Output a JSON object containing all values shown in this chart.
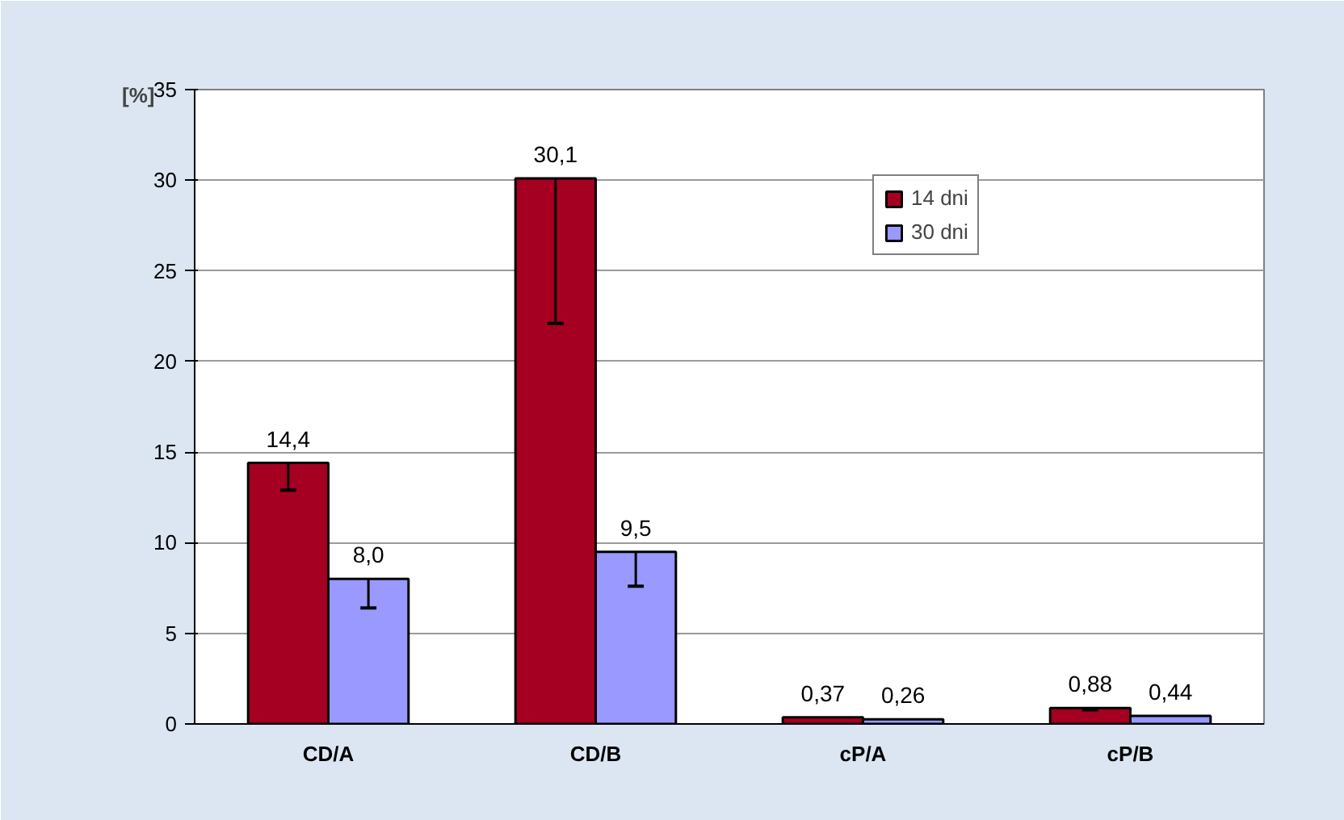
{
  "chart_data": {
    "type": "bar",
    "ylabel": "[%]",
    "categories": [
      "CD/A",
      "CD/B",
      "cP/A",
      "cP/B"
    ],
    "series": [
      {
        "name": "14 dni",
        "color": "#a50021",
        "values": [
          14.4,
          30.1,
          0.37,
          0.88
        ],
        "value_labels": [
          "14,4",
          "30,1",
          "0,37",
          "0,88"
        ],
        "errors": [
          [
            12.9,
            14.4
          ],
          [
            22.1,
            30.1
          ],
          null,
          [
            0.78,
            0.88
          ]
        ]
      },
      {
        "name": "30 dni",
        "color": "#9999ff",
        "values": [
          8.0,
          9.5,
          0.26,
          0.44
        ],
        "value_labels": [
          "8,0",
          "9,5",
          "0,26",
          "0,44"
        ],
        "errors": [
          [
            6.4,
            8.0
          ],
          [
            7.6,
            9.5
          ],
          null,
          null
        ]
      }
    ],
    "ylim": [
      0,
      35
    ],
    "yticks": [
      0,
      5,
      10,
      15,
      20,
      25,
      30,
      35
    ],
    "grid": "y",
    "legend": "top right"
  }
}
